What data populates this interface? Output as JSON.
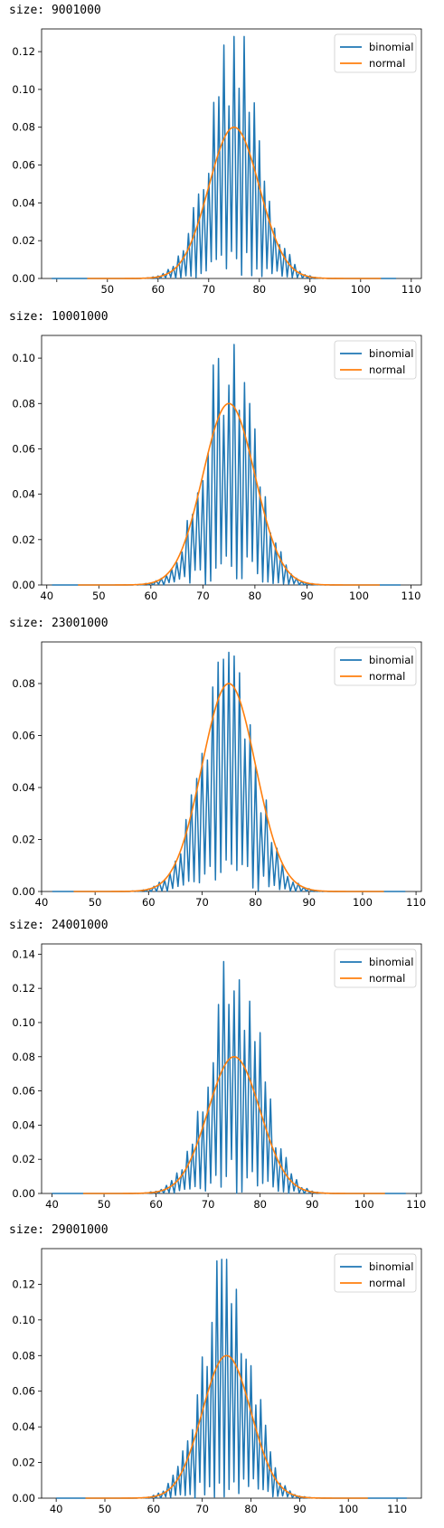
{
  "colors": {
    "binomial": "#1f77b4",
    "normal": "#ff7f0e"
  },
  "chart_data": [
    {
      "type": "line",
      "caption": "size: 9001000",
      "xlim": [
        37,
        112
      ],
      "ylim": [
        0,
        0.132
      ],
      "xticks": [
        {
          "v": 40,
          "label": ""
        },
        {
          "v": 50,
          "label": "50"
        },
        {
          "v": 60,
          "label": "60"
        },
        {
          "v": 70,
          "label": "70"
        },
        {
          "v": 80,
          "label": "80"
        },
        {
          "v": 90,
          "label": "90"
        },
        {
          "v": 100,
          "label": "100"
        },
        {
          "v": 110,
          "label": "110"
        }
      ],
      "yticks": [
        {
          "v": 0,
          "label": "0.00"
        },
        {
          "v": 0.02,
          "label": "0.02"
        },
        {
          "v": 0.04,
          "label": "0.04"
        },
        {
          "v": 0.06,
          "label": "0.06"
        },
        {
          "v": 0.08,
          "label": "0.08"
        },
        {
          "v": 0.1,
          "label": "0.10"
        },
        {
          "v": 0.12,
          "label": "0.12"
        }
      ],
      "legend": {
        "position": "top-right",
        "entries": [
          "binomial",
          "normal"
        ]
      },
      "series": [
        {
          "name": "binomial",
          "x_range": [
            39,
            107
          ],
          "peak": 0.128,
          "min_x": 50,
          "max_x": 102
        },
        {
          "name": "normal",
          "x_range": [
            46,
            104
          ],
          "mean": 75,
          "peak": 0.08
        }
      ]
    },
    {
      "type": "line",
      "caption": "size: 10001000",
      "xlim": [
        39,
        112
      ],
      "ylim": [
        0,
        0.11
      ],
      "xticks": [
        {
          "v": 40,
          "label": "40"
        },
        {
          "v": 50,
          "label": "50"
        },
        {
          "v": 60,
          "label": "60"
        },
        {
          "v": 70,
          "label": "70"
        },
        {
          "v": 80,
          "label": "80"
        },
        {
          "v": 90,
          "label": "90"
        },
        {
          "v": 100,
          "label": "100"
        },
        {
          "v": 110,
          "label": "110"
        }
      ],
      "yticks": [
        {
          "v": 0,
          "label": "0.00"
        },
        {
          "v": 0.02,
          "label": "0.02"
        },
        {
          "v": 0.04,
          "label": "0.04"
        },
        {
          "v": 0.06,
          "label": "0.06"
        },
        {
          "v": 0.08,
          "label": "0.08"
        },
        {
          "v": 0.1,
          "label": "0.10"
        }
      ],
      "legend": {
        "position": "top-right",
        "entries": [
          "binomial",
          "normal"
        ]
      },
      "series": [
        {
          "name": "binomial",
          "x_range": [
            41,
            108
          ],
          "peak": 0.106,
          "min_x": 52,
          "max_x": 100
        },
        {
          "name": "normal",
          "x_range": [
            46,
            104
          ],
          "mean": 75,
          "peak": 0.08
        }
      ]
    },
    {
      "type": "line",
      "caption": "size: 23001000",
      "xlim": [
        40,
        111
      ],
      "ylim": [
        0,
        0.096
      ],
      "xticks": [
        {
          "v": 40,
          "label": "40"
        },
        {
          "v": 50,
          "label": "50"
        },
        {
          "v": 60,
          "label": "60"
        },
        {
          "v": 70,
          "label": "70"
        },
        {
          "v": 80,
          "label": "80"
        },
        {
          "v": 90,
          "label": "90"
        },
        {
          "v": 100,
          "label": "100"
        },
        {
          "v": 110,
          "label": "110"
        }
      ],
      "yticks": [
        {
          "v": 0,
          "label": "0.00"
        },
        {
          "v": 0.02,
          "label": "0.02"
        },
        {
          "v": 0.04,
          "label": "0.04"
        },
        {
          "v": 0.06,
          "label": "0.06"
        },
        {
          "v": 0.08,
          "label": "0.08"
        }
      ],
      "legend": {
        "position": "top-right",
        "entries": [
          "binomial",
          "normal"
        ]
      },
      "series": [
        {
          "name": "binomial",
          "x_range": [
            42,
            108
          ],
          "peak": 0.092,
          "min_x": 52,
          "max_x": 100
        },
        {
          "name": "normal",
          "x_range": [
            46,
            104
          ],
          "mean": 75,
          "peak": 0.08
        }
      ]
    },
    {
      "type": "line",
      "caption": "size: 24001000",
      "xlim": [
        38,
        111
      ],
      "ylim": [
        0,
        0.146
      ],
      "xticks": [
        {
          "v": 40,
          "label": "40"
        },
        {
          "v": 50,
          "label": "50"
        },
        {
          "v": 60,
          "label": "60"
        },
        {
          "v": 70,
          "label": "70"
        },
        {
          "v": 80,
          "label": "80"
        },
        {
          "v": 90,
          "label": "90"
        },
        {
          "v": 100,
          "label": "100"
        },
        {
          "v": 110,
          "label": "110"
        }
      ],
      "yticks": [
        {
          "v": 0,
          "label": "0.00"
        },
        {
          "v": 0.02,
          "label": "0.02"
        },
        {
          "v": 0.04,
          "label": "0.04"
        },
        {
          "v": 0.06,
          "label": "0.06"
        },
        {
          "v": 0.08,
          "label": "0.08"
        },
        {
          "v": 0.1,
          "label": "0.10"
        },
        {
          "v": 0.12,
          "label": "0.12"
        },
        {
          "v": 0.14,
          "label": "0.14"
        }
      ],
      "legend": {
        "position": "top-right",
        "entries": [
          "binomial",
          "normal"
        ]
      },
      "series": [
        {
          "name": "binomial",
          "x_range": [
            40,
            108
          ],
          "peak": 0.139,
          "min_x": 52,
          "max_x": 100
        },
        {
          "name": "normal",
          "x_range": [
            46,
            104
          ],
          "mean": 75,
          "peak": 0.08
        }
      ]
    },
    {
      "type": "line",
      "caption": "size: 29001000",
      "xlim": [
        37,
        115
      ],
      "ylim": [
        0,
        0.14
      ],
      "xticks": [
        {
          "v": 40,
          "label": "40"
        },
        {
          "v": 50,
          "label": "50"
        },
        {
          "v": 60,
          "label": "60"
        },
        {
          "v": 70,
          "label": "70"
        },
        {
          "v": 80,
          "label": "80"
        },
        {
          "v": 90,
          "label": "90"
        },
        {
          "v": 100,
          "label": "100"
        },
        {
          "v": 110,
          "label": "110"
        }
      ],
      "yticks": [
        {
          "v": 0,
          "label": "0.00"
        },
        {
          "v": 0.02,
          "label": "0.02"
        },
        {
          "v": 0.04,
          "label": "0.04"
        },
        {
          "v": 0.06,
          "label": "0.06"
        },
        {
          "v": 0.08,
          "label": "0.08"
        },
        {
          "v": 0.1,
          "label": "0.10"
        },
        {
          "v": 0.12,
          "label": "0.12"
        }
      ],
      "legend": {
        "position": "top-right",
        "entries": [
          "binomial",
          "normal"
        ]
      },
      "series": [
        {
          "name": "binomial",
          "x_range": [
            40,
            112
          ],
          "peak": 0.134,
          "min_x": 52,
          "max_x": 100
        },
        {
          "name": "normal",
          "x_range": [
            46,
            104
          ],
          "mean": 75,
          "peak": 0.08
        }
      ]
    }
  ]
}
